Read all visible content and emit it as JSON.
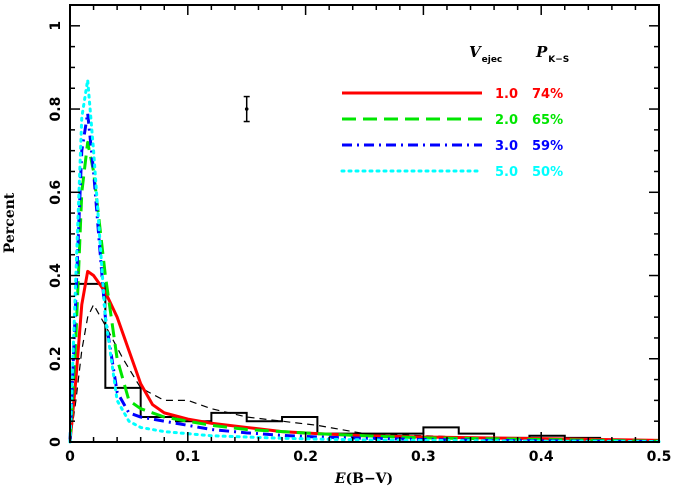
{
  "chart_data": {
    "type": "line",
    "xlabel_italic": "E",
    "xlabel_rest": "(B−V)",
    "ylabel": "Percent",
    "xlim": [
      0,
      0.5
    ],
    "ylim": [
      0,
      1.05
    ],
    "xticks": [
      0,
      0.1,
      0.2,
      0.3,
      0.4,
      0.5
    ],
    "xtick_labels": [
      "0",
      "0.1",
      "0.2",
      "0.3",
      "0.4",
      "0.5"
    ],
    "yticks": [
      0,
      0.2,
      0.4,
      0.6,
      0.8,
      1
    ],
    "ytick_labels": [
      "0",
      "0.2",
      "0.4",
      "0.6",
      "0.8",
      "1"
    ],
    "legend_header": {
      "col1": "V",
      "col1_sub": "ejec",
      "col2": "P",
      "col2_sub": "K−S"
    },
    "legend_placement": "top-right",
    "observed_histogram": {
      "bin_edges": [
        0,
        0.03,
        0.06,
        0.09,
        0.12,
        0.15,
        0.18,
        0.21,
        0.24,
        0.27,
        0.3,
        0.33,
        0.36,
        0.39,
        0.42,
        0.45,
        0.48
      ],
      "values": [
        0.38,
        0.13,
        0.06,
        0.05,
        0.07,
        0.05,
        0.06,
        0.02,
        0.02,
        0.02,
        0.035,
        0.02,
        0.01,
        0.015,
        0.01,
        0.005
      ],
      "color": "#000000"
    },
    "observed_smooth": {
      "x": [
        0,
        0.005,
        0.01,
        0.015,
        0.02,
        0.03,
        0.045,
        0.06,
        0.08,
        0.1,
        0.12,
        0.15,
        0.18,
        0.21,
        0.25,
        0.3,
        0.35,
        0.4,
        0.45,
        0.5
      ],
      "y": [
        0,
        0.1,
        0.22,
        0.3,
        0.33,
        0.28,
        0.2,
        0.13,
        0.1,
        0.1,
        0.08,
        0.06,
        0.05,
        0.04,
        0.02,
        0.015,
        0.01,
        0.008,
        0.005,
        0.003
      ],
      "color": "#000000"
    },
    "error_bar": {
      "x": 0.15,
      "y": 0.8,
      "yerr": 0.03
    },
    "series": [
      {
        "name": "1.0",
        "pks": "74%",
        "color": "#ff0000",
        "dash": "solid",
        "x": [
          0,
          0.005,
          0.01,
          0.015,
          0.02,
          0.03,
          0.04,
          0.05,
          0.06,
          0.07,
          0.08,
          0.1,
          0.12,
          0.15,
          0.18,
          0.21,
          0.25,
          0.3,
          0.35,
          0.4,
          0.45,
          0.5
        ],
        "y": [
          0,
          0.15,
          0.33,
          0.41,
          0.4,
          0.36,
          0.3,
          0.22,
          0.14,
          0.09,
          0.07,
          0.055,
          0.045,
          0.035,
          0.025,
          0.02,
          0.015,
          0.012,
          0.01,
          0.008,
          0.006,
          0.004
        ]
      },
      {
        "name": "2.0",
        "pks": "65%",
        "color": "#00e600",
        "dash": "dash",
        "x": [
          0,
          0.005,
          0.01,
          0.015,
          0.02,
          0.03,
          0.04,
          0.05,
          0.06,
          0.08,
          0.1,
          0.12,
          0.15,
          0.18,
          0.21,
          0.25,
          0.3,
          0.35,
          0.4,
          0.45,
          0.5
        ],
        "y": [
          0,
          0.25,
          0.6,
          0.72,
          0.65,
          0.4,
          0.2,
          0.1,
          0.08,
          0.06,
          0.05,
          0.04,
          0.03,
          0.025,
          0.02,
          0.015,
          0.01,
          0.008,
          0.006,
          0.004,
          0.002
        ]
      },
      {
        "name": "3.0",
        "pks": "59%",
        "color": "#0000ff",
        "dash": "dashdot",
        "x": [
          0,
          0.005,
          0.01,
          0.015,
          0.02,
          0.03,
          0.04,
          0.05,
          0.06,
          0.08,
          0.1,
          0.12,
          0.15,
          0.18,
          0.21,
          0.25,
          0.3,
          0.35,
          0.4,
          0.45,
          0.5
        ],
        "y": [
          0,
          0.35,
          0.7,
          0.79,
          0.65,
          0.3,
          0.12,
          0.07,
          0.06,
          0.05,
          0.04,
          0.03,
          0.022,
          0.016,
          0.012,
          0.009,
          0.006,
          0.004,
          0.003,
          0.002,
          0.001
        ]
      },
      {
        "name": "5.0",
        "pks": "50%",
        "color": "#00ffff",
        "dash": "dot",
        "x": [
          0,
          0.005,
          0.01,
          0.015,
          0.02,
          0.03,
          0.04,
          0.05,
          0.06,
          0.08,
          0.1,
          0.12,
          0.15,
          0.18,
          0.21,
          0.25,
          0.3,
          0.35,
          0.4,
          0.45,
          0.5
        ],
        "y": [
          0,
          0.4,
          0.78,
          0.87,
          0.7,
          0.3,
          0.1,
          0.05,
          0.035,
          0.025,
          0.02,
          0.015,
          0.012,
          0.009,
          0.007,
          0.005,
          0.004,
          0.003,
          0.002,
          0.0015,
          0.001
        ]
      }
    ]
  }
}
